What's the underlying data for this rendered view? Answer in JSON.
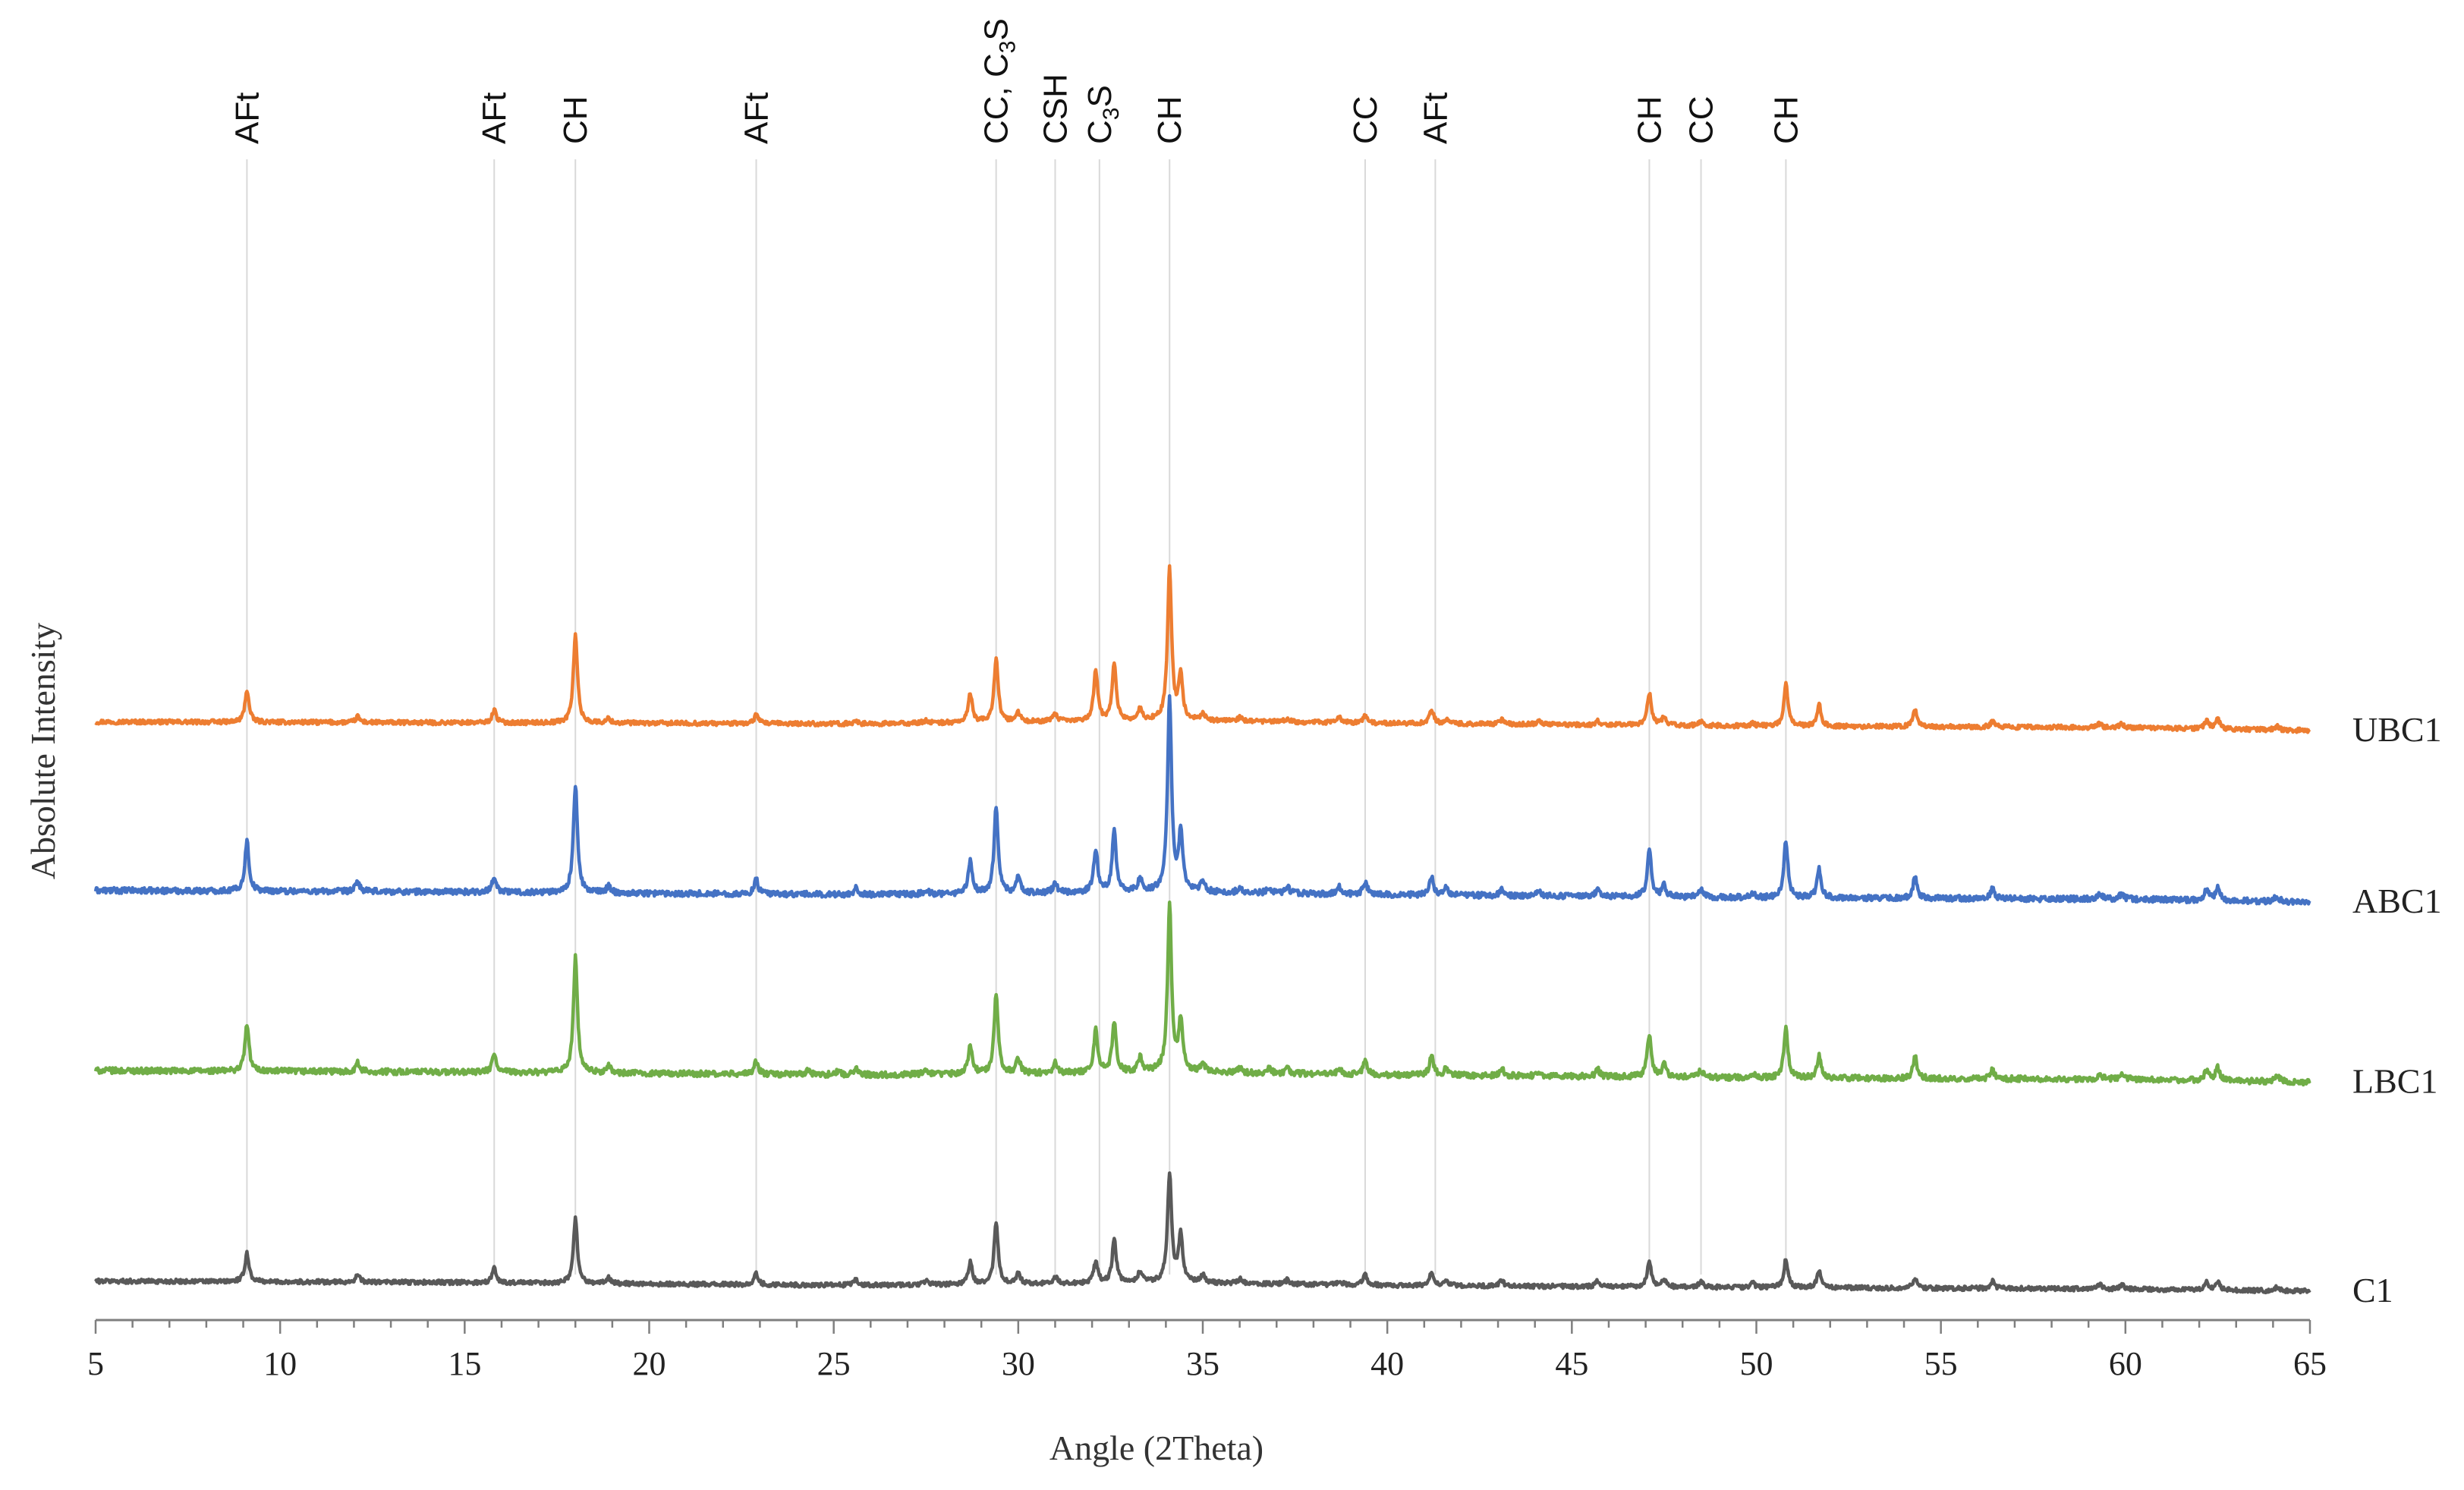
{
  "chart_data": {
    "type": "line",
    "title": "",
    "xlabel": "Angle (2Theta)",
    "ylabel": "Absolute Intensity",
    "xlim": [
      5,
      65
    ],
    "xticks": [
      5,
      10,
      15,
      20,
      25,
      30,
      35,
      40,
      45,
      50,
      55,
      60,
      65
    ],
    "x_minor_step": 1,
    "y_ticks_shown": false,
    "grid": false,
    "colors": {
      "UBC1": "#ED7D31",
      "ABC1": "#4472C4",
      "LBC1": "#70AD47",
      "C1": "#595959",
      "ref_line": "#D9D9D9",
      "axis": "#7f7f7f"
    },
    "reference_lines": [
      {
        "x": 9.1,
        "label": "AFt"
      },
      {
        "x": 15.8,
        "label": "AFt"
      },
      {
        "x": 18.0,
        "label": "CH"
      },
      {
        "x": 22.9,
        "label": "AFt"
      },
      {
        "x": 29.4,
        "label": "CC, C",
        "sub": "3",
        "tail": "S"
      },
      {
        "x": 31.0,
        "label": "CSH"
      },
      {
        "x": 32.2,
        "label": "C",
        "sub": "3",
        "tail": "S"
      },
      {
        "x": 34.1,
        "label": "CH"
      },
      {
        "x": 39.4,
        "label": "CC"
      },
      {
        "x": 41.3,
        "label": "AFt"
      },
      {
        "x": 47.1,
        "label": "CH"
      },
      {
        "x": 48.5,
        "label": "CC"
      },
      {
        "x": 50.8,
        "label": "CH"
      }
    ],
    "series": [
      {
        "name": "UBC1",
        "offset": 780,
        "baseline": [
          [
            5,
            8
          ],
          [
            20,
            6
          ],
          [
            26,
            5
          ],
          [
            30,
            8
          ],
          [
            34,
            10
          ],
          [
            40,
            6
          ],
          [
            50,
            2
          ],
          [
            60,
            0
          ],
          [
            65,
            -4
          ]
        ],
        "noise": 3,
        "peaks": [
          [
            9.1,
            45
          ],
          [
            12.1,
            8
          ],
          [
            15.8,
            18
          ],
          [
            18.0,
            125
          ],
          [
            18.9,
            6
          ],
          [
            22.9,
            12
          ],
          [
            25.6,
            5
          ],
          [
            27.5,
            4
          ],
          [
            28.7,
            40
          ],
          [
            29.4,
            90
          ],
          [
            30.0,
            12
          ],
          [
            31.0,
            10
          ],
          [
            32.1,
            70
          ],
          [
            32.6,
            80
          ],
          [
            33.3,
            15
          ],
          [
            34.1,
            210
          ],
          [
            34.4,
            60
          ],
          [
            35.0,
            10
          ],
          [
            36.0,
            5
          ],
          [
            37.3,
            5
          ],
          [
            38.7,
            7
          ],
          [
            39.4,
            10
          ],
          [
            41.2,
            20
          ],
          [
            41.6,
            6
          ],
          [
            43.1,
            6
          ],
          [
            44.1,
            5
          ],
          [
            45.7,
            5
          ],
          [
            47.1,
            45
          ],
          [
            47.5,
            12
          ],
          [
            48.5,
            6
          ],
          [
            49.9,
            4
          ],
          [
            50.8,
            60
          ],
          [
            51.7,
            30
          ],
          [
            54.3,
            25
          ],
          [
            56.4,
            8
          ],
          [
            59.3,
            5
          ],
          [
            59.9,
            5
          ],
          [
            62.2,
            12
          ],
          [
            62.5,
            14
          ],
          [
            64.1,
            5
          ]
        ]
      },
      {
        "name": "ABC1",
        "offset": 540,
        "baseline": [
          [
            5,
            14
          ],
          [
            15,
            12
          ],
          [
            20,
            10
          ],
          [
            26,
            8
          ],
          [
            30,
            10
          ],
          [
            34,
            12
          ],
          [
            40,
            8
          ],
          [
            50,
            4
          ],
          [
            60,
            2
          ],
          [
            65,
            -2
          ]
        ],
        "noise": 4,
        "peaks": [
          [
            9.1,
            70
          ],
          [
            12.1,
            14
          ],
          [
            15.8,
            22
          ],
          [
            18.0,
            150
          ],
          [
            18.9,
            10
          ],
          [
            22.9,
            20
          ],
          [
            25.6,
            10
          ],
          [
            27.5,
            6
          ],
          [
            28.7,
            45
          ],
          [
            29.4,
            120
          ],
          [
            30.0,
            22
          ],
          [
            31.0,
            14
          ],
          [
            32.1,
            60
          ],
          [
            32.6,
            85
          ],
          [
            33.3,
            18
          ],
          [
            34.1,
            270
          ],
          [
            34.4,
            80
          ],
          [
            35.0,
            15
          ],
          [
            36.0,
            8
          ],
          [
            36.8,
            8
          ],
          [
            37.3,
            8
          ],
          [
            38.7,
            10
          ],
          [
            39.4,
            18
          ],
          [
            41.2,
            25
          ],
          [
            41.6,
            10
          ],
          [
            43.1,
            10
          ],
          [
            44.1,
            6
          ],
          [
            45.7,
            10
          ],
          [
            47.1,
            65
          ],
          [
            47.5,
            15
          ],
          [
            48.5,
            10
          ],
          [
            49.9,
            6
          ],
          [
            50.8,
            80
          ],
          [
            51.7,
            40
          ],
          [
            54.3,
            30
          ],
          [
            56.4,
            14
          ],
          [
            59.3,
            8
          ],
          [
            59.9,
            8
          ],
          [
            62.2,
            15
          ],
          [
            62.5,
            18
          ],
          [
            64.1,
            8
          ]
        ]
      },
      {
        "name": "LBC1",
        "offset": 290,
        "baseline": [
          [
            5,
            14
          ],
          [
            15,
            12
          ],
          [
            20,
            10
          ],
          [
            26,
            8
          ],
          [
            30,
            10
          ],
          [
            34,
            12
          ],
          [
            40,
            8
          ],
          [
            50,
            4
          ],
          [
            60,
            2
          ],
          [
            65,
            -2
          ]
        ],
        "noise": 4,
        "peaks": [
          [
            9.1,
            65
          ],
          [
            12.1,
            12
          ],
          [
            15.8,
            25
          ],
          [
            18.0,
            160
          ],
          [
            18.9,
            10
          ],
          [
            22.9,
            18
          ],
          [
            24.3,
            5
          ],
          [
            25.1,
            5
          ],
          [
            25.6,
            10
          ],
          [
            27.5,
            6
          ],
          [
            28.7,
            40
          ],
          [
            29.4,
            110
          ],
          [
            30.0,
            20
          ],
          [
            31.0,
            14
          ],
          [
            32.1,
            60
          ],
          [
            32.6,
            70
          ],
          [
            33.3,
            20
          ],
          [
            34.1,
            230
          ],
          [
            34.4,
            70
          ],
          [
            35.0,
            14
          ],
          [
            36.0,
            8
          ],
          [
            36.8,
            8
          ],
          [
            37.3,
            8
          ],
          [
            38.7,
            8
          ],
          [
            39.4,
            18
          ],
          [
            41.2,
            28
          ],
          [
            41.6,
            10
          ],
          [
            43.1,
            10
          ],
          [
            44.1,
            6
          ],
          [
            45.7,
            10
          ],
          [
            47.1,
            60
          ],
          [
            47.5,
            18
          ],
          [
            48.5,
            10
          ],
          [
            49.9,
            6
          ],
          [
            50.8,
            70
          ],
          [
            51.7,
            30
          ],
          [
            54.3,
            30
          ],
          [
            56.4,
            12
          ],
          [
            59.3,
            8
          ],
          [
            59.9,
            8
          ],
          [
            62.2,
            15
          ],
          [
            62.5,
            18
          ],
          [
            64.1,
            10
          ]
        ]
      },
      {
        "name": "C1",
        "offset": 0,
        "baseline": [
          [
            5,
            12
          ],
          [
            15,
            10
          ],
          [
            20,
            8
          ],
          [
            26,
            6
          ],
          [
            30,
            8
          ],
          [
            34,
            10
          ],
          [
            40,
            6
          ],
          [
            50,
            3
          ],
          [
            60,
            1
          ],
          [
            65,
            -2
          ]
        ],
        "noise": 3,
        "peaks": [
          [
            9.1,
            40
          ],
          [
            12.1,
            10
          ],
          [
            15.8,
            20
          ],
          [
            18.0,
            90
          ],
          [
            18.9,
            8
          ],
          [
            22.9,
            15
          ],
          [
            25.6,
            8
          ],
          [
            27.5,
            6
          ],
          [
            28.7,
            30
          ],
          [
            29.4,
            85
          ],
          [
            30.0,
            15
          ],
          [
            31.0,
            10
          ],
          [
            32.1,
            30
          ],
          [
            32.6,
            60
          ],
          [
            33.3,
            15
          ],
          [
            34.1,
            150
          ],
          [
            34.4,
            65
          ],
          [
            35.0,
            10
          ],
          [
            36.0,
            6
          ],
          [
            37.3,
            6
          ],
          [
            38.7,
            6
          ],
          [
            39.4,
            15
          ],
          [
            41.2,
            18
          ],
          [
            41.6,
            8
          ],
          [
            43.1,
            8
          ],
          [
            45.7,
            8
          ],
          [
            47.1,
            35
          ],
          [
            47.5,
            10
          ],
          [
            48.5,
            8
          ],
          [
            49.9,
            6
          ],
          [
            50.8,
            40
          ],
          [
            51.7,
            25
          ],
          [
            54.3,
            15
          ],
          [
            56.4,
            10
          ],
          [
            59.3,
            6
          ],
          [
            59.9,
            6
          ],
          [
            62.2,
            10
          ],
          [
            62.5,
            12
          ],
          [
            64.1,
            5
          ]
        ]
      }
    ]
  }
}
